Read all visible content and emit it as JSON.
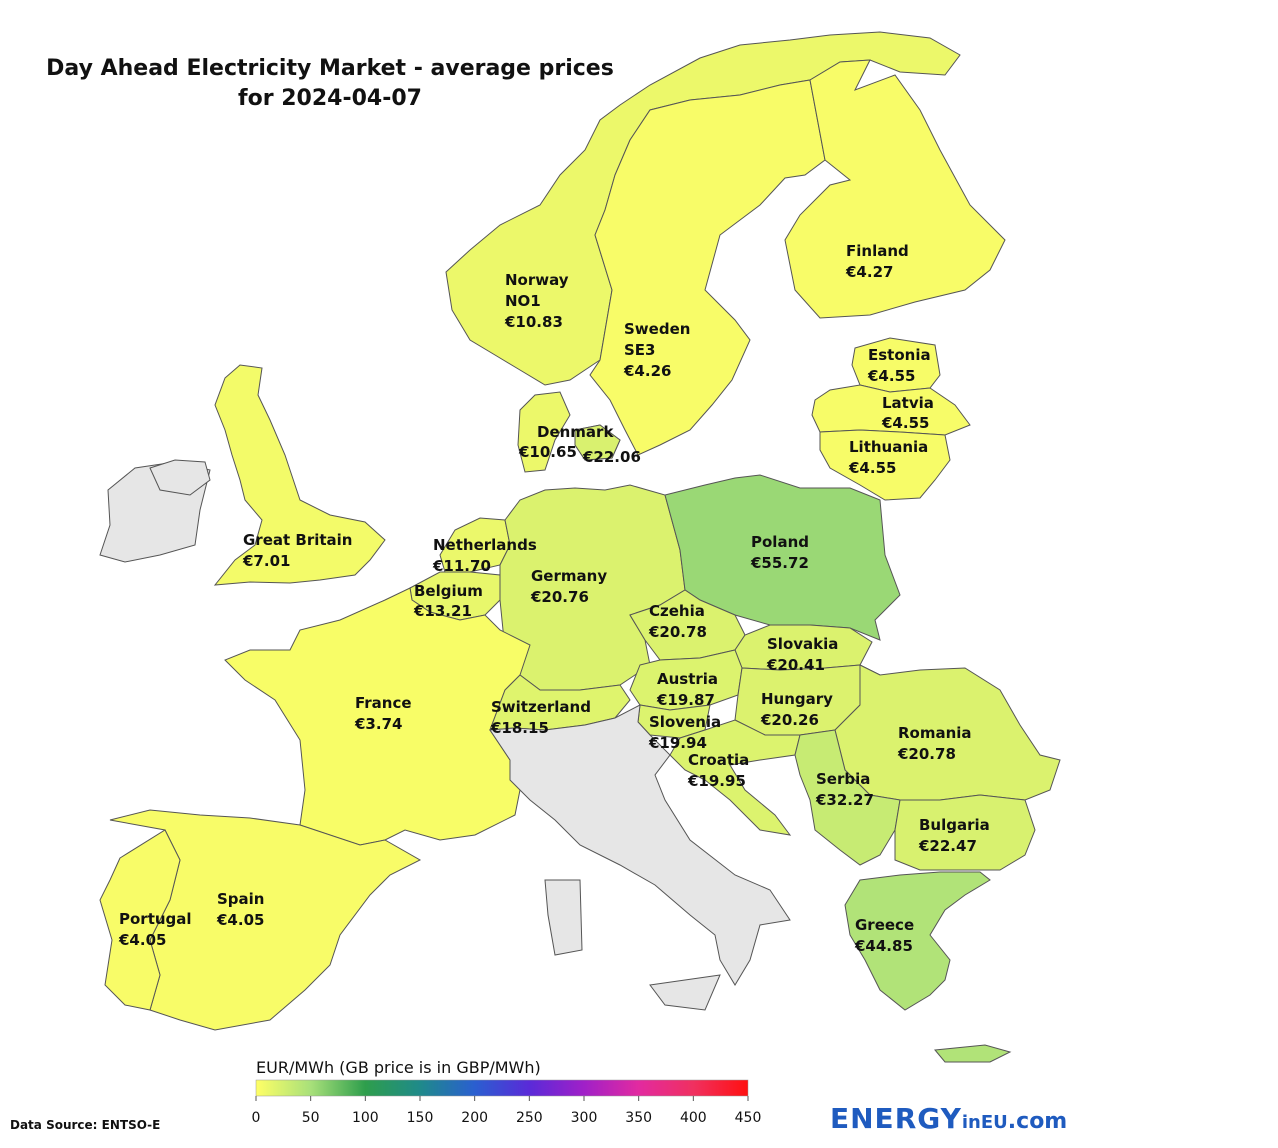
{
  "title_line1": "Day Ahead Electricity Market - average prices",
  "title_line2": "for 2024-04-07",
  "countries": [
    {
      "id": "norway",
      "name": "Norway",
      "zone": "NO1",
      "price": "€10.83",
      "value": 10.83
    },
    {
      "id": "sweden",
      "name": "Sweden",
      "zone": "SE3",
      "price": "€4.26",
      "value": 4.26
    },
    {
      "id": "finland",
      "name": "Finland",
      "zone": "",
      "price": "€4.27",
      "value": 4.27
    },
    {
      "id": "estonia",
      "name": "Estonia",
      "zone": "",
      "price": "€4.55",
      "value": 4.55
    },
    {
      "id": "latvia",
      "name": "Latvia",
      "zone": "",
      "price": "€4.55",
      "value": 4.55
    },
    {
      "id": "lithuania",
      "name": "Lithuania",
      "zone": "",
      "price": "€4.55",
      "value": 4.55
    },
    {
      "id": "denmark",
      "name": "Denmark",
      "zone": "",
      "price": "€10.65",
      "value": 10.65,
      "price2": "€22.06",
      "value2": 22.06
    },
    {
      "id": "gb",
      "name": "Great Britain",
      "zone": "",
      "price": "€7.01",
      "value": 7.01
    },
    {
      "id": "netherlands",
      "name": "Netherlands",
      "zone": "",
      "price": "€11.70",
      "value": 11.7
    },
    {
      "id": "belgium",
      "name": "Belgium",
      "zone": "",
      "price": "€13.21",
      "value": 13.21
    },
    {
      "id": "germany",
      "name": "Germany",
      "zone": "",
      "price": "€20.76",
      "value": 20.76
    },
    {
      "id": "poland",
      "name": "Poland",
      "zone": "",
      "price": "€55.72",
      "value": 55.72
    },
    {
      "id": "czechia",
      "name": "Czehia",
      "zone": "",
      "price": "€20.78",
      "value": 20.78
    },
    {
      "id": "slovakia",
      "name": "Slovakia",
      "zone": "",
      "price": "€20.41",
      "value": 20.41
    },
    {
      "id": "austria",
      "name": "Austria",
      "zone": "",
      "price": "€19.87",
      "value": 19.87
    },
    {
      "id": "hungary",
      "name": "Hungary",
      "zone": "",
      "price": "€20.26",
      "value": 20.26
    },
    {
      "id": "france",
      "name": "France",
      "zone": "",
      "price": "€3.74",
      "value": 3.74
    },
    {
      "id": "switzerland",
      "name": "Switzerland",
      "zone": "",
      "price": "€18.15",
      "value": 18.15
    },
    {
      "id": "slovenia",
      "name": "Slovenia",
      "zone": "",
      "price": "€19.94",
      "value": 19.94
    },
    {
      "id": "croatia",
      "name": "Croatia",
      "zone": "",
      "price": "€19.95",
      "value": 19.95
    },
    {
      "id": "romania",
      "name": "Romania",
      "zone": "",
      "price": "€20.78",
      "value": 20.78
    },
    {
      "id": "serbia",
      "name": "Serbia",
      "zone": "",
      "price": "€32.27",
      "value": 32.27
    },
    {
      "id": "bulgaria",
      "name": "Bulgaria",
      "zone": "",
      "price": "€22.47",
      "value": 22.47
    },
    {
      "id": "greece",
      "name": "Greece",
      "zone": "",
      "price": "€44.85",
      "value": 44.85
    },
    {
      "id": "spain",
      "name": "Spain",
      "zone": "",
      "price": "€4.05",
      "value": 4.05
    },
    {
      "id": "portugal",
      "name": "Portugal",
      "zone": "",
      "price": "€4.05",
      "value": 4.05
    }
  ],
  "no_data_regions": [
    "ireland",
    "italy"
  ],
  "colors": {
    "no_data": "#e6e6e6",
    "border": "#555555",
    "sea": "#ffffff",
    "brand": "#1f5bbf"
  },
  "scale": {
    "title": "EUR/MWh (GB price is in GBP/MWh)",
    "ticks": [
      "0",
      "50",
      "100",
      "150",
      "200",
      "250",
      "300",
      "350",
      "400",
      "450"
    ],
    "min": 0,
    "max": 450,
    "stops": [
      {
        "value": 0,
        "color": "#ffff66"
      },
      {
        "value": 50,
        "color": "#a8e07a"
      },
      {
        "value": 100,
        "color": "#2e9e4c"
      },
      {
        "value": 150,
        "color": "#1f8a8a"
      },
      {
        "value": 200,
        "color": "#2a5fd0"
      },
      {
        "value": 250,
        "color": "#5a2ad8"
      },
      {
        "value": 300,
        "color": "#a020c8"
      },
      {
        "value": 350,
        "color": "#e22aa0"
      },
      {
        "value": 400,
        "color": "#f03060"
      },
      {
        "value": 450,
        "color": "#ff1010"
      }
    ]
  },
  "source": "Data Source: ENTSO-E",
  "brand": {
    "part1": "ENERGY",
    "part2": "inEU",
    "part3": ".com"
  }
}
